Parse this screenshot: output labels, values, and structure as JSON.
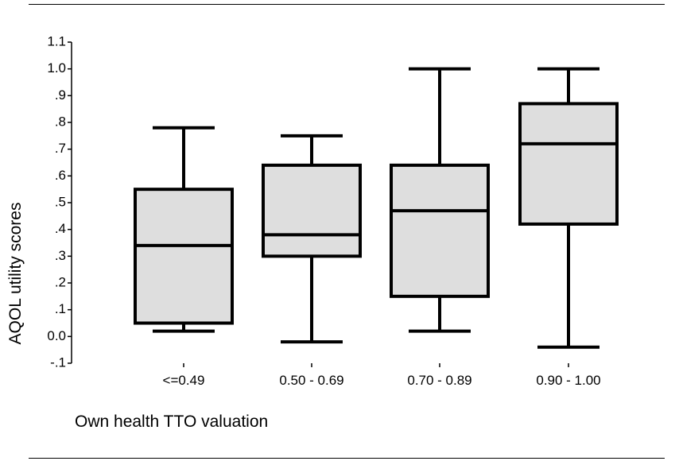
{
  "chart_data": {
    "type": "box",
    "title": "",
    "xlabel": "Own health TTO valuation",
    "ylabel": "AQOL utility scores",
    "ylim": [
      -0.1,
      1.1
    ],
    "yticks": [
      "-.1",
      "0.0",
      ".1",
      ".2",
      ".3",
      ".4",
      ".5",
      ".6",
      ".7",
      ".8",
      ".9",
      "1.0",
      "1.1"
    ],
    "ytick_values": [
      -0.1,
      0.0,
      0.1,
      0.2,
      0.3,
      0.4,
      0.5,
      0.6,
      0.7,
      0.8,
      0.9,
      1.0,
      1.1
    ],
    "categories": [
      "<=0.49",
      "0.50 - 0.69",
      "0.70 - 0.89",
      "0.90 - 1.00"
    ],
    "boxes": [
      {
        "category": "<=0.49",
        "min": 0.02,
        "q1": 0.05,
        "median": 0.34,
        "q3": 0.55,
        "max": 0.78
      },
      {
        "category": "0.50 - 0.69",
        "min": -0.02,
        "q1": 0.3,
        "median": 0.38,
        "q3": 0.64,
        "max": 0.75
      },
      {
        "category": "0.70 - 0.89",
        "min": 0.02,
        "q1": 0.15,
        "median": 0.47,
        "q3": 0.64,
        "max": 1.0
      },
      {
        "category": "0.90 - 1.00",
        "min": -0.04,
        "q1": 0.42,
        "median": 0.72,
        "q3": 0.87,
        "max": 1.0
      }
    ],
    "box_fill": "#dedede",
    "line_color": "#000000",
    "grid": false,
    "legend": "none"
  }
}
